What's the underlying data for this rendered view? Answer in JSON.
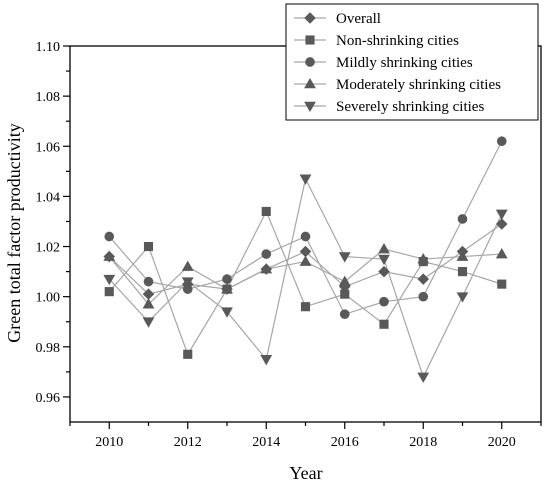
{
  "chart_data": {
    "type": "line",
    "title": "",
    "xlabel": "Year",
    "ylabel": "Green total factor productivity",
    "xlim": [
      2009,
      2021
    ],
    "ylim": [
      0.95,
      1.1
    ],
    "x": [
      2010,
      2011,
      2012,
      2013,
      2014,
      2015,
      2016,
      2017,
      2018,
      2019,
      2020
    ],
    "x_ticks": [
      2010,
      2012,
      2014,
      2016,
      2018,
      2020
    ],
    "y_ticks": [
      0.96,
      0.98,
      1.0,
      1.02,
      1.04,
      1.06,
      1.08,
      1.1
    ],
    "y_tick_labels": [
      "0.96",
      "0.98",
      "1.00",
      "1.02",
      "1.04",
      "1.06",
      "1.08",
      "1.10"
    ],
    "grid": false,
    "legend_position": "top-right",
    "line_color": "#a6a6a6",
    "marker_color": "#595959",
    "series": [
      {
        "name": "Overall",
        "marker": "diamond",
        "values": [
          1.016,
          1.001,
          1.005,
          1.003,
          1.011,
          1.018,
          1.004,
          1.01,
          1.007,
          1.018,
          1.029
        ]
      },
      {
        "name": "Non-shrinking cities",
        "marker": "square",
        "values": [
          1.002,
          1.02,
          0.977,
          1.003,
          1.034,
          0.996,
          1.001,
          0.989,
          1.014,
          1.01,
          1.005
        ]
      },
      {
        "name": "Mildly shrinking cities",
        "marker": "circle",
        "values": [
          1.024,
          1.006,
          1.003,
          1.007,
          1.017,
          1.024,
          0.993,
          0.998,
          1.0,
          1.031,
          1.062
        ]
      },
      {
        "name": "Moderately shrinking cities",
        "marker": "triangle-up",
        "values": [
          1.016,
          0.997,
          1.012,
          1.003,
          1.011,
          1.014,
          1.006,
          1.019,
          1.015,
          1.016,
          1.017
        ]
      },
      {
        "name": "Severely shrinking cities",
        "marker": "triangle-down",
        "values": [
          1.007,
          0.99,
          1.006,
          0.994,
          0.975,
          1.047,
          1.016,
          1.015,
          0.968,
          1.0,
          1.033
        ]
      }
    ]
  }
}
